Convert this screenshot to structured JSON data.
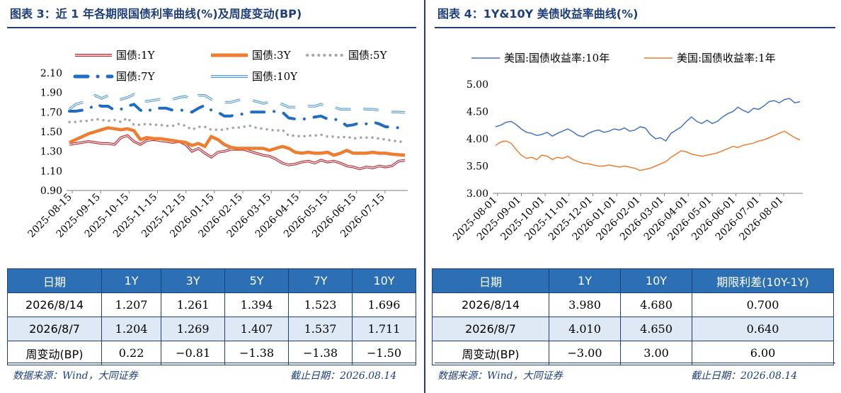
{
  "left": {
    "title": "图表 3：近 1 年各期限国债利率曲线(%)及周度变动(BP)",
    "chart_data": {
      "type": "line",
      "ylim": [
        0.9,
        2.1
      ],
      "yticks": [
        "2.10",
        "1.90",
        "1.70",
        "1.50",
        "1.30",
        "1.10",
        "0.90"
      ],
      "x_labels": [
        "2025-08-15",
        "2025-09-15",
        "2025-10-15",
        "2025-11-15",
        "2025-12-15",
        "2026-01-15",
        "2026-02-15",
        "2026-03-15",
        "2026-04-15",
        "2026-05-15",
        "2026-06-15",
        "2026-07-15"
      ],
      "legend_position": "top",
      "series": [
        {
          "name": "国债:1Y",
          "color": "#c0272d",
          "style": "double",
          "values": [
            1.37,
            1.38,
            1.39,
            1.4,
            1.39,
            1.38,
            1.38,
            1.37,
            1.44,
            1.46,
            1.4,
            1.37,
            1.41,
            1.42,
            1.41,
            1.4,
            1.39,
            1.4,
            1.37,
            1.3,
            1.33,
            1.28,
            1.24,
            1.29,
            1.3,
            1.32,
            1.32,
            1.32,
            1.3,
            1.28,
            1.26,
            1.25,
            1.22,
            1.18,
            1.16,
            1.17,
            1.19,
            1.2,
            1.18,
            1.21,
            1.19,
            1.2,
            1.18,
            1.15,
            1.14,
            1.12,
            1.14,
            1.13,
            1.15,
            1.14,
            1.15,
            1.2,
            1.207
          ]
        },
        {
          "name": "国债:3Y",
          "color": "#ed7d31",
          "style": "solid",
          "values": [
            1.39,
            1.42,
            1.45,
            1.48,
            1.5,
            1.52,
            1.54,
            1.53,
            1.52,
            1.53,
            1.51,
            1.42,
            1.44,
            1.43,
            1.43,
            1.42,
            1.41,
            1.4,
            1.39,
            1.36,
            1.38,
            1.35,
            1.45,
            1.42,
            1.37,
            1.34,
            1.33,
            1.33,
            1.33,
            1.33,
            1.33,
            1.31,
            1.33,
            1.35,
            1.33,
            1.29,
            1.28,
            1.29,
            1.28,
            1.28,
            1.29,
            1.26,
            1.28,
            1.31,
            1.28,
            1.28,
            1.28,
            1.29,
            1.28,
            1.28,
            1.27,
            1.265,
            1.261
          ]
        },
        {
          "name": "国债:5Y",
          "color": "#a6a6a6",
          "style": "dotted",
          "values": [
            1.6,
            1.6,
            1.61,
            1.61,
            1.63,
            1.62,
            1.61,
            1.62,
            1.6,
            1.64,
            1.57,
            1.57,
            1.58,
            1.57,
            1.57,
            1.56,
            1.56,
            1.58,
            1.56,
            1.52,
            1.55,
            1.55,
            1.52,
            1.52,
            1.52,
            1.54,
            1.54,
            1.55,
            1.56,
            1.54,
            1.53,
            1.52,
            1.51,
            1.52,
            1.46,
            1.46,
            1.45,
            1.46,
            1.46,
            1.47,
            1.45,
            1.45,
            1.44,
            1.45,
            1.43,
            1.44,
            1.44,
            1.44,
            1.43,
            1.42,
            1.41,
            1.4,
            1.394
          ]
        },
        {
          "name": "国债:7Y",
          "color": "#1f6cc4",
          "style": "dash",
          "values": [
            1.71,
            1.71,
            1.72,
            1.73,
            1.78,
            1.76,
            1.76,
            1.72,
            1.73,
            1.76,
            1.78,
            1.72,
            1.7,
            1.74,
            1.74,
            1.74,
            1.72,
            1.72,
            1.72,
            1.7,
            1.74,
            1.77,
            1.72,
            1.7,
            1.66,
            1.66,
            1.68,
            1.68,
            1.7,
            1.7,
            1.7,
            1.7,
            1.71,
            1.7,
            1.64,
            1.63,
            1.63,
            1.63,
            1.65,
            1.66,
            1.63,
            1.63,
            1.61,
            1.56,
            1.57,
            1.59,
            1.58,
            1.6,
            1.58,
            1.55,
            1.55,
            1.54,
            1.523
          ]
        },
        {
          "name": "国债:10Y",
          "color": "#5b9bd5",
          "style": "outline",
          "values": [
            1.73,
            1.78,
            1.8,
            1.82,
            1.87,
            1.84,
            1.87,
            1.83,
            1.83,
            1.85,
            1.88,
            1.82,
            1.81,
            1.82,
            1.83,
            1.82,
            1.83,
            1.85,
            1.86,
            1.82,
            1.87,
            1.87,
            1.83,
            1.82,
            1.8,
            1.8,
            1.82,
            1.83,
            1.82,
            1.81,
            1.79,
            1.8,
            1.8,
            1.78,
            1.75,
            1.75,
            1.75,
            1.76,
            1.76,
            1.78,
            1.75,
            1.75,
            1.73,
            1.73,
            1.73,
            1.74,
            1.73,
            1.73,
            1.72,
            1.71,
            1.7,
            1.7,
            1.696
          ]
        }
      ]
    },
    "table": {
      "headers": [
        "日期",
        "1Y",
        "3Y",
        "5Y",
        "7Y",
        "10Y"
      ],
      "rows": [
        [
          "2026/8/14",
          "1.207",
          "1.261",
          "1.394",
          "1.523",
          "1.696"
        ],
        [
          "2026/8/7",
          "1.204",
          "1.269",
          "1.407",
          "1.537",
          "1.711"
        ],
        [
          "周变动(BP)",
          "0.22",
          "−0.81",
          "−1.38",
          "−1.38",
          "−1.50"
        ]
      ]
    },
    "source": "数据来源：Wind，大同证券",
    "cutoff": "截止日期：2026.08.14"
  },
  "right": {
    "title": "图表 4：1Y&10Y 美债收益率曲线(%)",
    "chart_data": {
      "type": "line",
      "ylim": [
        3.0,
        5.0
      ],
      "yticks": [
        "5.00",
        "4.50",
        "4.00",
        "3.50",
        "3.00"
      ],
      "x_labels": [
        "2025-08-01",
        "2025-09-01",
        "2025-10-01",
        "2025-11-01",
        "2025-12-01",
        "2026-01-01",
        "2026-02-01",
        "2026-03-01",
        "2026-04-01",
        "2026-05-01",
        "2026-06-01",
        "2026-07-01",
        "2026-08-01"
      ],
      "legend_position": "top",
      "series": [
        {
          "name": "美国:国债收益率:10年",
          "color": "#4472c4",
          "values": [
            4.22,
            4.25,
            4.3,
            4.32,
            4.26,
            4.18,
            4.12,
            4.1,
            4.06,
            4.08,
            4.12,
            4.05,
            4.1,
            4.14,
            4.18,
            4.13,
            4.06,
            4.04,
            4.1,
            4.14,
            4.16,
            4.12,
            4.14,
            4.18,
            4.16,
            4.2,
            4.14,
            4.16,
            4.22,
            4.2,
            4.08,
            4.0,
            4.02,
            3.96,
            4.1,
            4.16,
            4.22,
            4.32,
            4.4,
            4.32,
            4.28,
            4.34,
            4.28,
            4.32,
            4.4,
            4.46,
            4.5,
            4.58,
            4.52,
            4.48,
            4.56,
            4.54,
            4.6,
            4.68,
            4.7,
            4.66,
            4.72,
            4.74,
            4.66,
            4.68
          ]
        },
        {
          "name": "美国:国债收益率:1年",
          "color": "#ed7d31",
          "values": [
            3.88,
            3.94,
            3.96,
            3.92,
            3.8,
            3.7,
            3.64,
            3.66,
            3.62,
            3.7,
            3.68,
            3.62,
            3.66,
            3.64,
            3.68,
            3.62,
            3.58,
            3.55,
            3.54,
            3.52,
            3.5,
            3.5,
            3.52,
            3.5,
            3.48,
            3.5,
            3.48,
            3.46,
            3.42,
            3.44,
            3.46,
            3.5,
            3.54,
            3.58,
            3.66,
            3.72,
            3.78,
            3.76,
            3.72,
            3.7,
            3.68,
            3.7,
            3.72,
            3.74,
            3.78,
            3.82,
            3.86,
            3.84,
            3.88,
            3.9,
            3.92,
            3.96,
            3.98,
            4.02,
            4.06,
            4.1,
            4.14,
            4.08,
            4.02,
            3.98
          ]
        }
      ]
    },
    "table": {
      "headers": [
        "日期",
        "1Y",
        "10Y",
        "期限利差(10Y-1Y)"
      ],
      "rows": [
        [
          "2026/8/14",
          "3.980",
          "4.680",
          "0.700"
        ],
        [
          "2026/8/7",
          "4.010",
          "4.650",
          "0.640"
        ],
        [
          "周变动(BP)",
          "−3.00",
          "3.00",
          "6.00"
        ]
      ]
    },
    "source": "数据来源：Wind，大同证券",
    "cutoff": "截止日期：2026.08.14"
  }
}
